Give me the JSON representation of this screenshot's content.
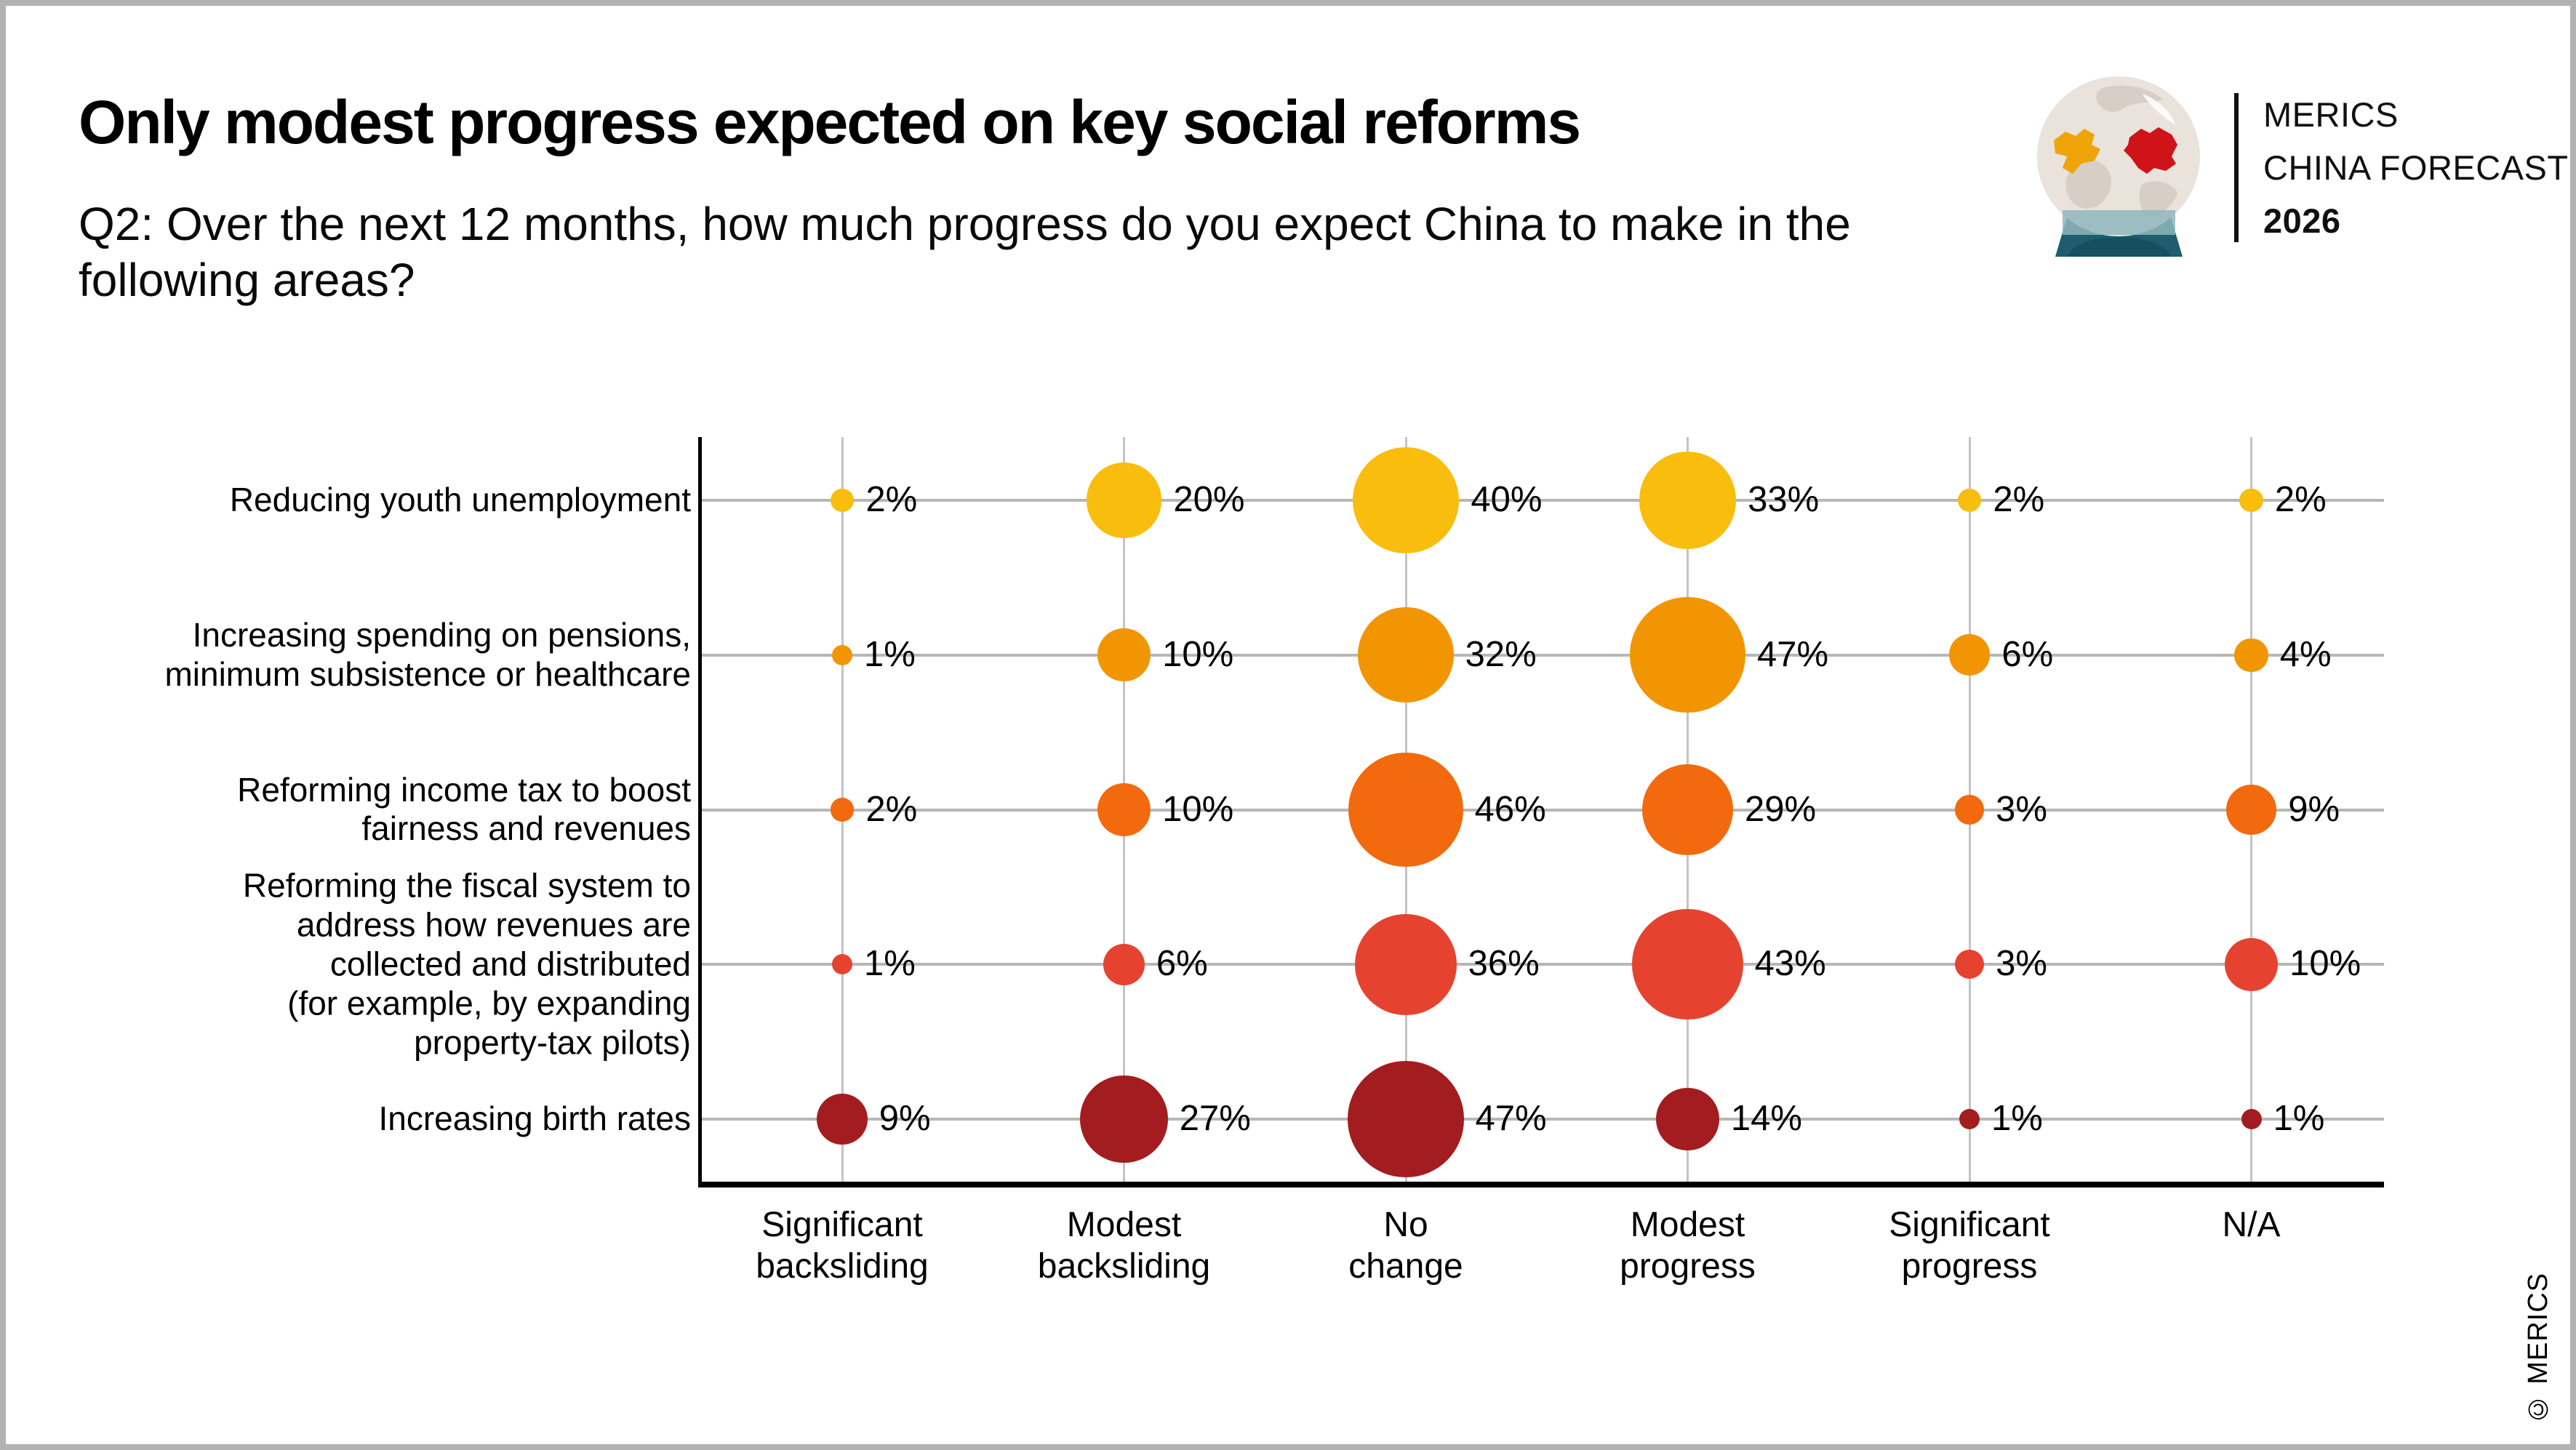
{
  "header": {
    "title": "Only modest progress expected on key social reforms",
    "subtitle": "Q2: Over the next 12 months, how much progress do you expect China to make in the\nfollowing areas?"
  },
  "logo": {
    "line1": "MERICS",
    "line2": "CHINA FORECAST",
    "line3": "2026",
    "colors": {
      "globe": "#e9e3dc",
      "land": "#d7cfc6",
      "europe": "#efa40a",
      "china": "#cf1318",
      "base_dark": "#1d5d6e",
      "base_light": "#8fb6bd"
    }
  },
  "copyright": "© MERICS",
  "chart_data": {
    "type": "bubble",
    "title": "Only modest progress expected on key social reforms",
    "unit": "%",
    "legend_position": "none",
    "grid": true,
    "columns": [
      "Significant\nbacksliding",
      "Modest\nbacksliding",
      "No\nchange",
      "Modest\nprogress",
      "Significant\nprogress",
      "N/A"
    ],
    "rows": [
      {
        "label": "Reducing youth unemployment",
        "color": "#f9bd0e",
        "values": [
          2,
          20,
          40,
          33,
          2,
          2
        ]
      },
      {
        "label": "Increasing spending on pensions,\nminimum subsistence or healthcare",
        "color": "#f29502",
        "values": [
          1,
          10,
          32,
          47,
          6,
          4
        ]
      },
      {
        "label": "Reforming income tax to boost\nfairness and revenues",
        "color": "#f26a0d",
        "values": [
          2,
          10,
          46,
          29,
          3,
          9
        ]
      },
      {
        "label": "Reforming the fiscal system to\naddress how revenues are\ncollected and distributed\n(for example, by expanding\nproperty-tax pilots)",
        "color": "#e5432f",
        "values": [
          1,
          6,
          36,
          43,
          3,
          10
        ]
      },
      {
        "label": "Increasing birth rates",
        "color": "#a31d20",
        "values": [
          9,
          27,
          47,
          14,
          1,
          1
        ]
      }
    ]
  }
}
